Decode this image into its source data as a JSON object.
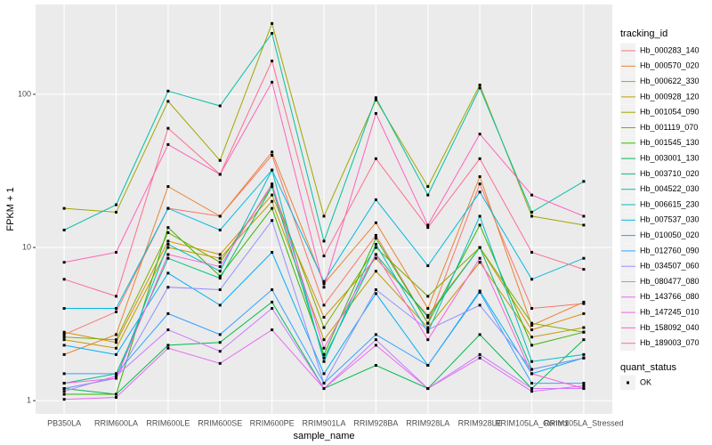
{
  "chart_data": {
    "type": "line",
    "x_label": "sample_name",
    "y_label": "FPKM + 1",
    "log_y": true,
    "grid": true,
    "categories": [
      "PB350LA",
      "RRIM600LA",
      "RRIM600LE",
      "RRIM600SE",
      "RRIM600PE",
      "RRIM901LA",
      "RRIM928BA",
      "RRIM928LA",
      "RRIM928LE",
      "RRIM105LA_Control",
      "RRIM105LA_Stressed"
    ],
    "ylim": [
      0.82,
      386
    ],
    "yticks": [
      1,
      10,
      100
    ],
    "legend_title": "tracking_id",
    "legend_position": "right",
    "shape_legend": {
      "title": "quant_status",
      "labels": [
        "OK"
      ]
    },
    "series": [
      {
        "name": "Hb_000283_140",
        "color": "#F8766D",
        "values": [
          2.7,
          3.8,
          18,
          16,
          40,
          4.2,
          12,
          3.2,
          26,
          4.0,
          4.3
        ]
      },
      {
        "name": "Hb_000570_020",
        "color": "#EA8331",
        "values": [
          2.0,
          2.7,
          25,
          16,
          42,
          5.8,
          14.5,
          4.0,
          29,
          3.1,
          4.4
        ]
      },
      {
        "name": "Hb_000622_330",
        "color": "#D89000",
        "values": [
          2.8,
          2.4,
          11,
          9,
          22,
          3.5,
          8.5,
          3.6,
          10,
          2.9,
          3.7
        ]
      },
      {
        "name": "Hb_000928_120",
        "color": "#C09B00",
        "values": [
          2.5,
          2.2,
          10,
          8.5,
          20,
          2.5,
          7.0,
          3.0,
          8,
          2.6,
          3.0
        ]
      },
      {
        "name": "Hb_001054_090",
        "color": "#A3A500",
        "values": [
          18,
          17,
          90,
          37,
          290,
          16,
          92,
          25,
          115,
          16,
          14
        ]
      },
      {
        "name": "Hb_001119_070",
        "color": "#7CAE00",
        "values": [
          2.6,
          2.5,
          12.5,
          8,
          25,
          3.0,
          10,
          4.8,
          10,
          3.2,
          2.8
        ]
      },
      {
        "name": "Hb_001545_130",
        "color": "#39B600",
        "values": [
          1.1,
          1.1,
          13.5,
          6.5,
          18,
          2.0,
          11.5,
          3.2,
          14,
          2.3,
          2.8
        ]
      },
      {
        "name": "Hb_003001_130",
        "color": "#00BB4E",
        "values": [
          1.2,
          1.1,
          2.3,
          2.4,
          4.4,
          1.2,
          1.7,
          1.2,
          2.7,
          1.2,
          2.5
        ]
      },
      {
        "name": "Hb_003710_020",
        "color": "#00BF7D",
        "values": [
          1.3,
          1.5,
          8.5,
          6.3,
          25,
          1.9,
          9,
          3.5,
          10,
          1.6,
          1.9
        ]
      },
      {
        "name": "Hb_004522_030",
        "color": "#00C1A3",
        "values": [
          13,
          19,
          105,
          84,
          250,
          11,
          95,
          22,
          110,
          17,
          27
        ]
      },
      {
        "name": "Hb_006615_230",
        "color": "#00BFC4",
        "values": [
          1.2,
          1.4,
          10.5,
          7,
          32,
          1.8,
          10.5,
          2.8,
          16,
          1.8,
          2.0
        ]
      },
      {
        "name": "Hb_007537_030",
        "color": "#00BAE0",
        "values": [
          4.0,
          4.0,
          18,
          13,
          32,
          6,
          20.5,
          7.6,
          23,
          6.2,
          8.5
        ]
      },
      {
        "name": "Hb_010050_020",
        "color": "#00B0F6",
        "values": [
          2.3,
          2.0,
          6.8,
          4.2,
          9.3,
          1.5,
          5.0,
          1.7,
          5.2,
          1.5,
          1.9
        ]
      },
      {
        "name": "Hb_012760_090",
        "color": "#35A2FF",
        "values": [
          1.5,
          1.5,
          3.7,
          2.7,
          5.3,
          1.3,
          2.7,
          1.7,
          5.1,
          1.3,
          1.3
        ]
      },
      {
        "name": "Hb_034507_060",
        "color": "#9590FF",
        "values": [
          1.2,
          1.4,
          5.5,
          5.3,
          15,
          1.3,
          5.3,
          2.9,
          4.2,
          1.6,
          1.9
        ]
      },
      {
        "name": "Hb_080477_080",
        "color": "#C77CFF",
        "values": [
          1.15,
          1.45,
          2.9,
          2.1,
          4.0,
          1.2,
          2.5,
          1.2,
          2.0,
          1.2,
          1.2
        ]
      },
      {
        "name": "Hb_143766_080",
        "color": "#E76BF3",
        "values": [
          1.02,
          1.05,
          2.2,
          1.75,
          2.9,
          1.2,
          2.3,
          1.2,
          1.9,
          1.15,
          1.25
        ]
      },
      {
        "name": "Hb_147245_010",
        "color": "#FA62DB",
        "values": [
          1.3,
          1.4,
          9,
          7.5,
          26,
          2.2,
          9,
          2.5,
          8.5,
          1.5,
          1.2
        ]
      },
      {
        "name": "Hb_158092_040",
        "color": "#FF62BC",
        "values": [
          8,
          9.3,
          47,
          30,
          120,
          5.5,
          75,
          14,
          55,
          22,
          16
        ]
      },
      {
        "name": "Hb_189003_070",
        "color": "#FF6C91",
        "values": [
          6.2,
          4.8,
          60,
          30,
          165,
          8.8,
          38,
          13.5,
          38,
          9.3,
          7.2
        ]
      }
    ]
  }
}
